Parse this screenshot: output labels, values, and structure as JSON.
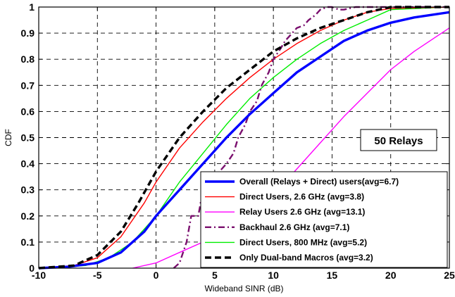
{
  "chart_data": {
    "type": "line",
    "title": "",
    "xlabel": "Wideband SINR (dB)",
    "ylabel": "CDF",
    "xlim": [
      -10,
      25
    ],
    "ylim": [
      0,
      1
    ],
    "xticks": [
      -10,
      -5,
      0,
      5,
      10,
      15,
      20,
      25
    ],
    "yticks": [
      0,
      0.1,
      0.2,
      0.3,
      0.4,
      0.5,
      0.6,
      0.7,
      0.8,
      0.9,
      1
    ],
    "xtick_labels": [
      "-10",
      "-5",
      "0",
      "5",
      "10",
      "15",
      "20",
      "25"
    ],
    "ytick_labels": [
      "0",
      "0.1",
      "0.2",
      "0.3",
      "0.4",
      "0.5",
      "0.6",
      "0.7",
      "0.8",
      "0.9",
      "1"
    ],
    "grid": true,
    "legend_position": "bottom-right",
    "annotation": "50 Relays",
    "series": [
      {
        "name": "Overall (Relays + Direct) users(avg=6.7)",
        "color": "#0000ff",
        "style": "solid",
        "width": "thick",
        "x": [
          -10,
          -7.5,
          -5,
          -3,
          -1,
          0,
          2,
          4,
          5,
          6,
          8,
          10,
          12,
          14,
          16,
          18,
          20,
          22,
          25
        ],
        "y": [
          0,
          0.005,
          0.02,
          0.06,
          0.14,
          0.2,
          0.3,
          0.4,
          0.45,
          0.5,
          0.59,
          0.67,
          0.75,
          0.81,
          0.87,
          0.91,
          0.94,
          0.96,
          0.98
        ]
      },
      {
        "name": "Direct Users, 2.6 GHz (avg=3.8)",
        "color": "#ff0000",
        "style": "solid",
        "width": "thin",
        "x": [
          -10,
          -7,
          -5,
          -3,
          -1,
          0,
          2,
          4,
          6,
          8,
          10,
          12,
          14,
          16,
          18,
          20,
          25
        ],
        "y": [
          0,
          0.01,
          0.04,
          0.12,
          0.25,
          0.33,
          0.46,
          0.56,
          0.65,
          0.73,
          0.8,
          0.86,
          0.91,
          0.95,
          0.98,
          0.995,
          1
        ]
      },
      {
        "name": "Relay Users 2.6 GHz  (avg=13.1)",
        "color": "#ff00ff",
        "style": "solid",
        "width": "thin",
        "x": [
          -2,
          0,
          2,
          4,
          6,
          8,
          10,
          12,
          14,
          16,
          18,
          20,
          22,
          24,
          25
        ],
        "y": [
          0,
          0.02,
          0.06,
          0.1,
          0.16,
          0.22,
          0.28,
          0.38,
          0.48,
          0.58,
          0.67,
          0.76,
          0.83,
          0.89,
          0.92
        ]
      },
      {
        "name": "Backhaul 2.6 GHz (avg=7.1)",
        "color": "#7a0f6e",
        "style": "dashdot",
        "width": "medium",
        "x": [
          1.5,
          2,
          2.6,
          3,
          3.6,
          4,
          4.6,
          5,
          5.6,
          6,
          6.6,
          7,
          7.6,
          8,
          8.6,
          9,
          9.6,
          10,
          10.6,
          11,
          11.6,
          12,
          12.6,
          13,
          13.6,
          14,
          14.6,
          15,
          15.6,
          16,
          17,
          18,
          20,
          25
        ],
        "y": [
          0,
          0.02,
          0.1,
          0.2,
          0.2,
          0.3,
          0.3,
          0.35,
          0.38,
          0.4,
          0.44,
          0.5,
          0.55,
          0.6,
          0.64,
          0.7,
          0.75,
          0.8,
          0.84,
          0.87,
          0.9,
          0.92,
          0.93,
          0.95,
          0.97,
          0.99,
          1,
          1,
          0.99,
          0.99,
          1,
          1,
          1,
          1
        ]
      },
      {
        "name": "Direct Users, 800 MHz  (avg=5.2)",
        "color": "#00ee00",
        "style": "solid",
        "width": "thin",
        "x": [
          -10,
          -6,
          -4,
          -2,
          0,
          2,
          4,
          6,
          8,
          10,
          12,
          14,
          16,
          18,
          20,
          25
        ],
        "y": [
          0,
          0.01,
          0.04,
          0.1,
          0.2,
          0.33,
          0.44,
          0.55,
          0.65,
          0.73,
          0.8,
          0.86,
          0.91,
          0.95,
          0.99,
          1
        ]
      },
      {
        "name": "Only Dual-band Macros (avg=3.2)",
        "color": "#000000",
        "style": "dashed",
        "width": "thick",
        "x": [
          -10,
          -7,
          -5,
          -3,
          -1.5,
          0,
          2,
          4,
          6,
          8,
          10,
          12,
          14,
          16,
          18,
          20,
          25
        ],
        "y": [
          0,
          0.01,
          0.05,
          0.14,
          0.25,
          0.37,
          0.5,
          0.6,
          0.69,
          0.76,
          0.83,
          0.88,
          0.92,
          0.95,
          0.98,
          1,
          1
        ]
      }
    ]
  }
}
